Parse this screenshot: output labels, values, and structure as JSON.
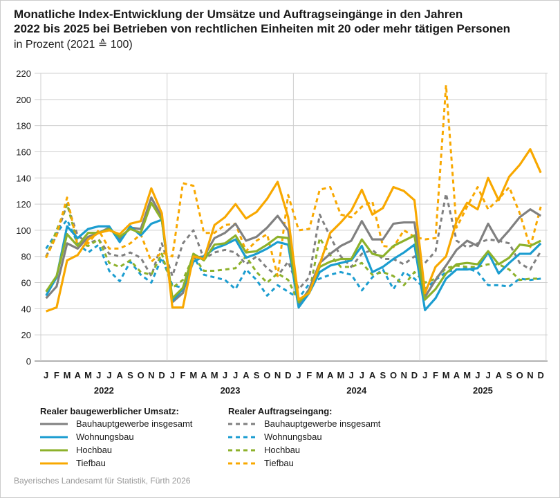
{
  "chart_data": {
    "type": "line",
    "title_line1": "Monatliche Index-Entwicklung der Umsätze und Auftragseingänge in den Jahren",
    "title_line2": "2022 bis 2025 bei Betrieben von rechtlichen Einheiten mit 20 oder mehr tätigen Personen",
    "subtitle": "in Prozent (2021 ≙ 100)",
    "ylim": [
      0,
      220
    ],
    "yticks": [
      0,
      20,
      40,
      60,
      80,
      100,
      120,
      140,
      160,
      180,
      200,
      220
    ],
    "grid": true,
    "months": [
      "J",
      "F",
      "M",
      "A",
      "M",
      "J",
      "J",
      "A",
      "S",
      "O",
      "N",
      "D"
    ],
    "years": [
      "2022",
      "2023",
      "2024",
      "2025"
    ],
    "legend_group1": "Realer baugewerblicher Umsatz:",
    "legend_group2": "Realer Auftragseingang:",
    "series": [
      {
        "name": "Bauhauptgewerbe insgesamt",
        "group": "Umsatz",
        "color": "#808080",
        "dashed": false,
        "values": [
          48,
          57,
          90,
          86,
          95,
          98,
          102,
          93,
          102,
          101,
          125,
          110,
          45,
          52,
          79,
          80,
          94,
          98,
          105,
          92,
          95,
          102,
          111,
          100,
          43,
          55,
          75,
          82,
          88,
          92,
          107,
          93,
          93,
          105,
          106,
          106,
          49,
          62,
          73,
          85,
          92,
          88,
          105,
          91,
          100,
          110,
          116,
          111
        ]
      },
      {
        "name": "Wohnungsbau",
        "group": "Umsatz",
        "color": "#1b9dd0",
        "dashed": false,
        "values": [
          50,
          64,
          103,
          94,
          101,
          103,
          103,
          91,
          103,
          96,
          105,
          108,
          46,
          55,
          76,
          80,
          86,
          89,
          93,
          79,
          82,
          86,
          91,
          89,
          41,
          52,
          68,
          73,
          75,
          77,
          88,
          68,
          72,
          78,
          83,
          89,
          39,
          48,
          63,
          70,
          70,
          71,
          83,
          67,
          75,
          82,
          82,
          90
        ]
      },
      {
        "name": "Hochbau",
        "group": "Umsatz",
        "color": "#8db12b",
        "dashed": false,
        "values": [
          53,
          65,
          97,
          88,
          98,
          98,
          101,
          95,
          101,
          98,
          121,
          108,
          48,
          56,
          82,
          77,
          89,
          90,
          96,
          83,
          84,
          89,
          95,
          94,
          45,
          53,
          72,
          76,
          78,
          78,
          93,
          82,
          80,
          88,
          92,
          96,
          47,
          55,
          67,
          74,
          75,
          74,
          84,
          74,
          79,
          89,
          88,
          92
        ]
      },
      {
        "name": "Tiefbau",
        "group": "Umsatz",
        "color": "#f8a800",
        "dashed": false,
        "values": [
          38,
          41,
          77,
          81,
          93,
          98,
          100,
          97,
          105,
          107,
          132,
          113,
          41,
          41,
          80,
          78,
          104,
          110,
          120,
          109,
          114,
          124,
          137,
          110,
          47,
          52,
          74,
          98,
          106,
          115,
          131,
          112,
          117,
          133,
          130,
          123,
          52,
          72,
          80,
          107,
          121,
          116,
          140,
          123,
          141,
          150,
          162,
          144
        ]
      },
      {
        "name": "Bauhauptgewerbe insgesamt",
        "group": "Auftragseingang",
        "color": "#808080",
        "dashed": true,
        "values": [
          80,
          96,
          120,
          96,
          90,
          93,
          82,
          80,
          83,
          79,
          65,
          90,
          65,
          90,
          100,
          78,
          83,
          85,
          83,
          74,
          80,
          71,
          65,
          76,
          55,
          64,
          112,
          95,
          80,
          72,
          82,
          85,
          78,
          78,
          74,
          80,
          75,
          84,
          128,
          92,
          87,
          90,
          93,
          92,
          90,
          75,
          70,
          84
        ]
      },
      {
        "name": "Wohnungsbau",
        "group": "Auftragseingang",
        "color": "#1b9dd0",
        "dashed": true,
        "values": [
          86,
          98,
          108,
          90,
          83,
          89,
          69,
          61,
          76,
          66,
          60,
          79,
          58,
          56,
          80,
          66,
          64,
          62,
          55,
          70,
          62,
          50,
          58,
          53,
          48,
          59,
          63,
          66,
          68,
          66,
          54,
          64,
          70,
          55,
          68,
          63,
          55,
          62,
          68,
          70,
          71,
          68,
          58,
          58,
          57,
          63,
          62,
          63
        ]
      },
      {
        "name": "Hochbau",
        "group": "Auftragseingang",
        "color": "#8db12b",
        "dashed": true,
        "values": [
          79,
          100,
          120,
          90,
          88,
          93,
          75,
          72,
          77,
          68,
          66,
          82,
          56,
          62,
          80,
          69,
          69,
          70,
          71,
          80,
          68,
          60,
          67,
          62,
          45,
          52,
          94,
          81,
          72,
          72,
          75,
          66,
          68,
          65,
          58,
          68,
          60,
          63,
          71,
          73,
          72,
          72,
          74,
          74,
          70,
          62,
          63,
          63
        ]
      },
      {
        "name": "Tiefbau",
        "group": "Auftragseingang",
        "color": "#f8a800",
        "dashed": true,
        "values": [
          79,
          96,
          125,
          88,
          90,
          100,
          86,
          86,
          90,
          97,
          76,
          83,
          80,
          136,
          134,
          98,
          98,
          104,
          105,
          84,
          92,
          97,
          65,
          127,
          100,
          101,
          131,
          133,
          112,
          110,
          118,
          122,
          88,
          87,
          100,
          95,
          93,
          94,
          211,
          102,
          118,
          133,
          116,
          124,
          133,
          113,
          87,
          118
        ]
      }
    ]
  },
  "source": "Bayerisches Landesamt für Statistik, Fürth 2026"
}
